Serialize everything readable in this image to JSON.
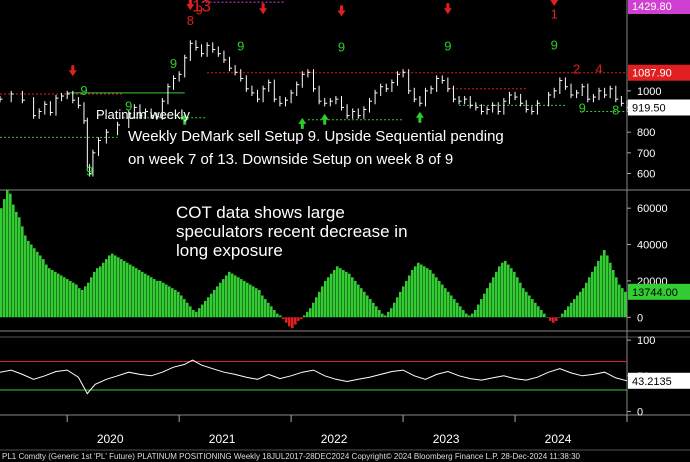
{
  "footer": "PL1 Comdty (Generic 1st 'PL' Future) PLATINUM POSITIONING  Weekly 18JUL2017-28DEC2024 Copyright© 2024 Bloomberg Finance L.P.  28-Dec-2024 11:38:30",
  "colors": {
    "background": "#000000",
    "price_line": "#ffffff",
    "cot_bar_positive": "#33cc33",
    "cot_bar_negative": "#e02020",
    "setup_green": "#2ecc2e",
    "setup_red": "#e02020",
    "resistance_line": "#e02020",
    "support_line": "#33cc33",
    "sequential_line": "#d040d0",
    "high_badge": "#d040d0",
    "last_price_badge": "#e02020",
    "cot_badge": "#33cc33",
    "rsi_upper_line": "#e02020",
    "rsi_lower_line": "#33cc33"
  },
  "chart_data": [
    {
      "type": "candlestick",
      "panel": "price",
      "title": "",
      "annotations": [
        "Platinum weekly",
        "Weekly DeMark sell Setup 9. Upside Sequential pending on week 7 of 13. Downside Setup on week 8 of 9"
      ],
      "x_labels": [
        "2020",
        "2021",
        "2022",
        "2023",
        "2024"
      ],
      "y_ticks": [
        600,
        700,
        800,
        900,
        1000
      ],
      "ylim": [
        520,
        1440
      ],
      "badges": [
        {
          "value": 1429.8,
          "label": "1429.80",
          "color": "#d040d0"
        },
        {
          "value": 1087.9,
          "label": "1087.90",
          "color": "#e02020"
        },
        {
          "value": 919.5,
          "label": "919.50",
          "color": "#ffffff"
        }
      ],
      "series": [
        {
          "name": "",
          "points": [
            [
              2019.4,
              960
            ],
            [
              2019.5,
              985
            ],
            [
              2019.6,
              955
            ],
            [
              2019.7,
              880
            ],
            [
              2019.75,
              900
            ],
            [
              2019.8,
              935
            ],
            [
              2019.85,
              895
            ],
            [
              2019.9,
              965
            ],
            [
              2019.95,
              975
            ],
            [
              2020.0,
              985
            ],
            [
              2020.05,
              955
            ],
            [
              2020.1,
              930
            ],
            [
              2020.15,
              855
            ],
            [
              2020.18,
              630
            ],
            [
              2020.2,
              600
            ],
            [
              2020.23,
              700
            ],
            [
              2020.28,
              760
            ],
            [
              2020.35,
              800
            ],
            [
              2020.45,
              835
            ],
            [
              2020.55,
              890
            ],
            [
              2020.6,
              920
            ],
            [
              2020.65,
              880
            ],
            [
              2020.7,
              900
            ],
            [
              2020.75,
              880
            ],
            [
              2020.8,
              875
            ],
            [
              2020.85,
              950
            ],
            [
              2020.9,
              1020
            ],
            [
              2020.95,
              1060
            ],
            [
              2021.0,
              1080
            ],
            [
              2021.05,
              1160
            ],
            [
              2021.1,
              1230
            ],
            [
              2021.15,
              1210
            ],
            [
              2021.2,
              1180
            ],
            [
              2021.25,
              1220
            ],
            [
              2021.3,
              1200
            ],
            [
              2021.35,
              1180
            ],
            [
              2021.4,
              1150
            ],
            [
              2021.45,
              1110
            ],
            [
              2021.5,
              1090
            ],
            [
              2021.55,
              1060
            ],
            [
              2021.6,
              1010
            ],
            [
              2021.65,
              990
            ],
            [
              2021.7,
              960
            ],
            [
              2021.75,
              1010
            ],
            [
              2021.8,
              1040
            ],
            [
              2021.85,
              960
            ],
            [
              2021.9,
              940
            ],
            [
              2021.95,
              955
            ],
            [
              2022.0,
              990
            ],
            [
              2022.05,
              1030
            ],
            [
              2022.1,
              1080
            ],
            [
              2022.15,
              1090
            ],
            [
              2022.2,
              1010
            ],
            [
              2022.25,
              950
            ],
            [
              2022.3,
              940
            ],
            [
              2022.35,
              950
            ],
            [
              2022.4,
              960
            ],
            [
              2022.45,
              920
            ],
            [
              2022.5,
              880
            ],
            [
              2022.55,
              900
            ],
            [
              2022.6,
              880
            ],
            [
              2022.65,
              910
            ],
            [
              2022.7,
              950
            ],
            [
              2022.75,
              990
            ],
            [
              2022.8,
              1020
            ],
            [
              2022.85,
              1010
            ],
            [
              2022.9,
              1040
            ],
            [
              2022.95,
              1080
            ],
            [
              2023.0,
              1090
            ],
            [
              2023.05,
              1000
            ],
            [
              2023.1,
              960
            ],
            [
              2023.15,
              940
            ],
            [
              2023.2,
              1000
            ],
            [
              2023.25,
              1010
            ],
            [
              2023.3,
              1060
            ],
            [
              2023.35,
              1050
            ],
            [
              2023.4,
              1010
            ],
            [
              2023.45,
              960
            ],
            [
              2023.5,
              950
            ],
            [
              2023.55,
              960
            ],
            [
              2023.6,
              930
            ],
            [
              2023.65,
              920
            ],
            [
              2023.7,
              900
            ],
            [
              2023.75,
              910
            ],
            [
              2023.8,
              930
            ],
            [
              2023.85,
              900
            ],
            [
              2023.9,
              950
            ],
            [
              2023.95,
              980
            ],
            [
              2024.0,
              970
            ],
            [
              2024.05,
              940
            ],
            [
              2024.1,
              910
            ],
            [
              2024.15,
              900
            ],
            [
              2024.2,
              940
            ],
            [
              2024.3,
              980
            ],
            [
              2024.35,
              1000
            ],
            [
              2024.4,
              1050
            ],
            [
              2024.45,
              1020
            ],
            [
              2024.5,
              980
            ],
            [
              2024.55,
              990
            ],
            [
              2024.6,
              1020
            ],
            [
              2024.65,
              960
            ],
            [
              2024.7,
              970
            ],
            [
              2024.75,
              1000
            ],
            [
              2024.8,
              980
            ],
            [
              2024.85,
              1010
            ],
            [
              2024.9,
              960
            ],
            [
              2024.95,
              940
            ],
            [
              2025.0,
              920
            ]
          ]
        }
      ],
      "demark_labels": [
        {
          "text": "9",
          "x": 2020.2,
          "y": 590,
          "color": "green"
        },
        {
          "text": "9",
          "x": 2020.15,
          "y": 980,
          "color": "green"
        },
        {
          "text": "9",
          "x": 2020.55,
          "y": 905,
          "color": "green"
        },
        {
          "text": "9",
          "x": 2020.95,
          "y": 1110,
          "color": "green"
        },
        {
          "text": "9",
          "x": 2021.55,
          "y": 1195,
          "color": "green"
        },
        {
          "text": "9",
          "x": 2022.45,
          "y": 1190,
          "color": "green"
        },
        {
          "text": "9",
          "x": 2023.4,
          "y": 1195,
          "color": "green"
        },
        {
          "text": "9",
          "x": 2024.35,
          "y": 1200,
          "color": "green"
        },
        {
          "text": "9",
          "x": 2024.6,
          "y": 895,
          "color": "green"
        },
        {
          "text": "8",
          "x": 2024.9,
          "y": 885,
          "color": "green"
        },
        {
          "text": "13",
          "x": 2021.2,
          "y": 1385,
          "color": "red"
        },
        {
          "text": "1",
          "x": 2024.35,
          "y": 1350,
          "color": "red"
        },
        {
          "text": "8",
          "x": 2021.1,
          "y": 1320,
          "color": "red"
        },
        {
          "text": "9",
          "x": 2021.18,
          "y": 1370,
          "color": "red"
        },
        {
          "text": "2",
          "x": 2024.55,
          "y": 1085,
          "color": "red"
        },
        {
          "text": "4",
          "x": 2024.75,
          "y": 1085,
          "color": "red"
        }
      ],
      "arrows": [
        {
          "x": 2020.05,
          "y": 1100,
          "dir": "down",
          "color": "red"
        },
        {
          "x": 2021.1,
          "y": 1420,
          "dir": "down",
          "color": "red"
        },
        {
          "x": 2021.75,
          "y": 1400,
          "dir": "down",
          "color": "red"
        },
        {
          "x": 2022.45,
          "y": 1390,
          "dir": "down",
          "color": "red"
        },
        {
          "x": 2023.4,
          "y": 1400,
          "dir": "down",
          "color": "red"
        },
        {
          "x": 2024.35,
          "y": 1440,
          "dir": "down",
          "color": "red"
        },
        {
          "x": 2021.05,
          "y": 860,
          "dir": "up",
          "color": "green"
        },
        {
          "x": 2022.1,
          "y": 840,
          "dir": "up",
          "color": "green"
        },
        {
          "x": 2022.3,
          "y": 860,
          "dir": "up",
          "color": "green"
        },
        {
          "x": 2023.15,
          "y": 870,
          "dir": "up",
          "color": "green"
        }
      ],
      "levels": [
        {
          "y": 1087.9,
          "x_from": 2021.25,
          "x_to": 2025.0,
          "color": "red",
          "dash": "dotted"
        },
        {
          "y": 985,
          "x_from": 2019.4,
          "x_to": 2020.5,
          "color": "red",
          "dash": "dotted"
        },
        {
          "y": 990,
          "x_from": 2020.0,
          "x_to": 2021.05,
          "color": "green",
          "dash": "solid"
        },
        {
          "y": 870,
          "x_from": 2020.5,
          "x_to": 2021.25,
          "color": "green",
          "dash": "dotted"
        },
        {
          "y": 775,
          "x_from": 2019.4,
          "x_to": 2020.45,
          "color": "green",
          "dash": "dotted"
        },
        {
          "y": 1429.8,
          "x_from": 2021.2,
          "x_to": 2021.95,
          "color": "magenta",
          "dash": "dotted"
        },
        {
          "y": 860,
          "x_from": 2022.15,
          "x_to": 2023.0,
          "color": "green",
          "dash": "dotted"
        },
        {
          "y": 1010,
          "x_from": 2023.4,
          "x_to": 2024.1,
          "color": "red",
          "dash": "dotted"
        },
        {
          "y": 930,
          "x_from": 2023.5,
          "x_to": 2024.45,
          "color": "green",
          "dash": "dotted"
        },
        {
          "y": 900,
          "x_from": 2024.6,
          "x_to": 2025.0,
          "color": "green",
          "dash": "dotted"
        }
      ]
    },
    {
      "type": "bar",
      "panel": "cot",
      "title": "",
      "annotations": [
        "COT data shows large speculators recent decrease in long exposure"
      ],
      "y_ticks": [
        0,
        20000,
        40000,
        60000
      ],
      "ylim": [
        -7000,
        70000
      ],
      "last_value_label": "13744.00",
      "x_from": 2019.4,
      "x_to": 2025.0,
      "values": [
        60000,
        65000,
        70000,
        68000,
        62000,
        58000,
        55000,
        50000,
        45000,
        42000,
        40000,
        38000,
        36000,
        34000,
        32000,
        29000,
        27000,
        26000,
        25000,
        24000,
        23000,
        22000,
        21000,
        20000,
        19000,
        18000,
        16000,
        15000,
        17000,
        19000,
        22000,
        25000,
        27000,
        28000,
        30000,
        32000,
        34000,
        35000,
        34000,
        33000,
        32000,
        31000,
        30000,
        29000,
        28000,
        27000,
        26000,
        25000,
        24000,
        23000,
        22000,
        21000,
        20000,
        20000,
        19000,
        18000,
        17000,
        16000,
        15000,
        14000,
        12000,
        10000,
        8000,
        6000,
        4000,
        3000,
        5000,
        7000,
        9000,
        11000,
        13000,
        15000,
        17000,
        19000,
        21000,
        23000,
        25000,
        24000,
        23000,
        22000,
        21000,
        20000,
        19000,
        18000,
        17000,
        16000,
        15000,
        12000,
        10000,
        8000,
        6000,
        4000,
        2000,
        1000,
        -1000,
        -3000,
        -5000,
        -6000,
        -4000,
        -2000,
        -1000,
        1000,
        3000,
        5000,
        8000,
        11000,
        14000,
        17000,
        20000,
        22000,
        24000,
        26000,
        28000,
        27000,
        26000,
        25000,
        24000,
        22000,
        20000,
        18000,
        16000,
        14000,
        12000,
        10000,
        8000,
        6000,
        4000,
        2000,
        1000,
        3000,
        5000,
        8000,
        11000,
        14000,
        17000,
        20000,
        23000,
        26000,
        28000,
        30000,
        29000,
        28000,
        27000,
        26000,
        24000,
        22000,
        20000,
        18000,
        16000,
        14000,
        12000,
        10000,
        8000,
        6000,
        4000,
        2000,
        1000,
        2000,
        4000,
        7000,
        10000,
        13000,
        16000,
        19000,
        22000,
        25000,
        28000,
        30000,
        31000,
        29000,
        27000,
        25000,
        22000,
        19000,
        16000,
        14000,
        12000,
        10000,
        8000,
        6000,
        4000,
        2000,
        0,
        -2000,
        -3000,
        -2000,
        0,
        2000,
        4000,
        6000,
        8000,
        10000,
        12000,
        14000,
        16000,
        19000,
        22000,
        25000,
        28000,
        31000,
        34000,
        37000,
        34000,
        30000,
        26000,
        22000,
        18000,
        16000,
        14000
      ]
    },
    {
      "type": "line",
      "panel": "rsi",
      "title": "",
      "y_ticks": [
        0,
        50,
        100
      ],
      "ylim": [
        -5,
        110
      ],
      "last_value_label": "43.2135",
      "upper_level": 70,
      "lower_level": 30,
      "x": [
        2019.4,
        2019.5,
        2019.6,
        2019.7,
        2019.8,
        2019.9,
        2020.0,
        2020.1,
        2020.18,
        2020.25,
        2020.35,
        2020.45,
        2020.55,
        2020.65,
        2020.75,
        2020.85,
        2020.95,
        2021.05,
        2021.12,
        2021.2,
        2021.3,
        2021.4,
        2021.5,
        2021.6,
        2021.7,
        2021.8,
        2021.9,
        2022.0,
        2022.1,
        2022.2,
        2022.3,
        2022.4,
        2022.5,
        2022.6,
        2022.7,
        2022.8,
        2022.9,
        2023.0,
        2023.1,
        2023.2,
        2023.3,
        2023.4,
        2023.5,
        2023.6,
        2023.7,
        2023.8,
        2023.9,
        2024.0,
        2024.1,
        2024.2,
        2024.3,
        2024.4,
        2024.5,
        2024.6,
        2024.7,
        2024.8,
        2024.9,
        2025.0
      ],
      "values": [
        55,
        58,
        52,
        45,
        50,
        56,
        58,
        48,
        25,
        38,
        45,
        50,
        55,
        52,
        50,
        55,
        62,
        66,
        72,
        65,
        60,
        55,
        52,
        48,
        45,
        52,
        46,
        50,
        55,
        58,
        50,
        45,
        42,
        45,
        48,
        52,
        56,
        58,
        50,
        45,
        52,
        56,
        50,
        46,
        44,
        47,
        50,
        46,
        44,
        48,
        55,
        60,
        54,
        50,
        52,
        55,
        47,
        43
      ]
    }
  ]
}
